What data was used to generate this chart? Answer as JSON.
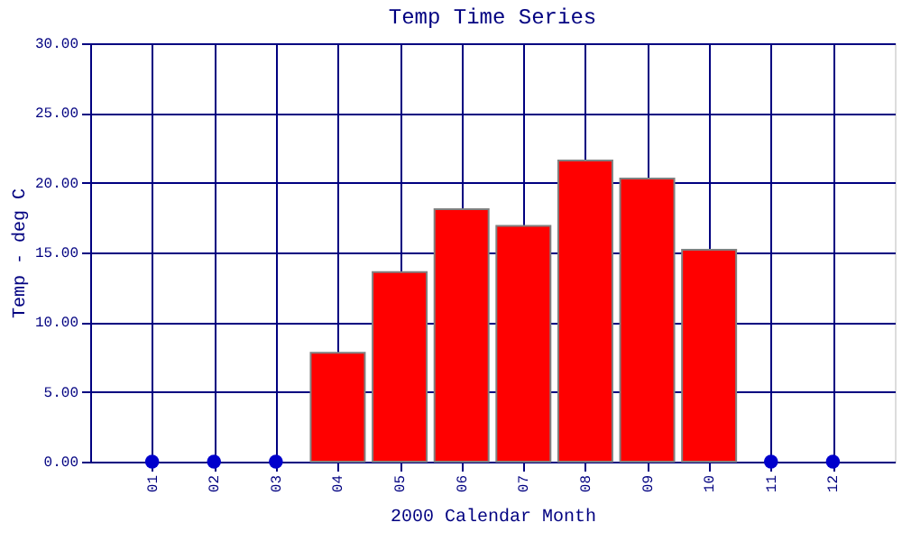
{
  "chart_data": {
    "type": "bar",
    "title": "Temp Time Series",
    "xlabel": "2000 Calendar Month",
    "ylabel": "Temp - deg C",
    "categories": [
      "01",
      "02",
      "03",
      "04",
      "05",
      "06",
      "07",
      "08",
      "09",
      "10",
      "11",
      "12"
    ],
    "series": [
      {
        "color": "#ff0000",
        "values": [
          null,
          null,
          null,
          7.8,
          13.6,
          18.1,
          16.9,
          21.6,
          20.3,
          15.2,
          null,
          null
        ]
      },
      {
        "type": "scatter",
        "color": "#0000cc",
        "marker": "circle",
        "values": [
          0,
          0,
          0,
          null,
          null,
          null,
          null,
          null,
          null,
          null,
          0,
          0
        ]
      }
    ],
    "ylim": [
      0,
      30
    ],
    "yticks": [
      {
        "value": 0,
        "label": "0.00"
      },
      {
        "value": 5,
        "label": "5.00"
      },
      {
        "value": 10,
        "label": "10.00"
      },
      {
        "value": 15,
        "label": "15.00"
      },
      {
        "value": 20,
        "label": "20.00"
      },
      {
        "value": 25,
        "label": "25.00"
      },
      {
        "value": 30,
        "label": "30.00"
      }
    ],
    "grid": true
  }
}
